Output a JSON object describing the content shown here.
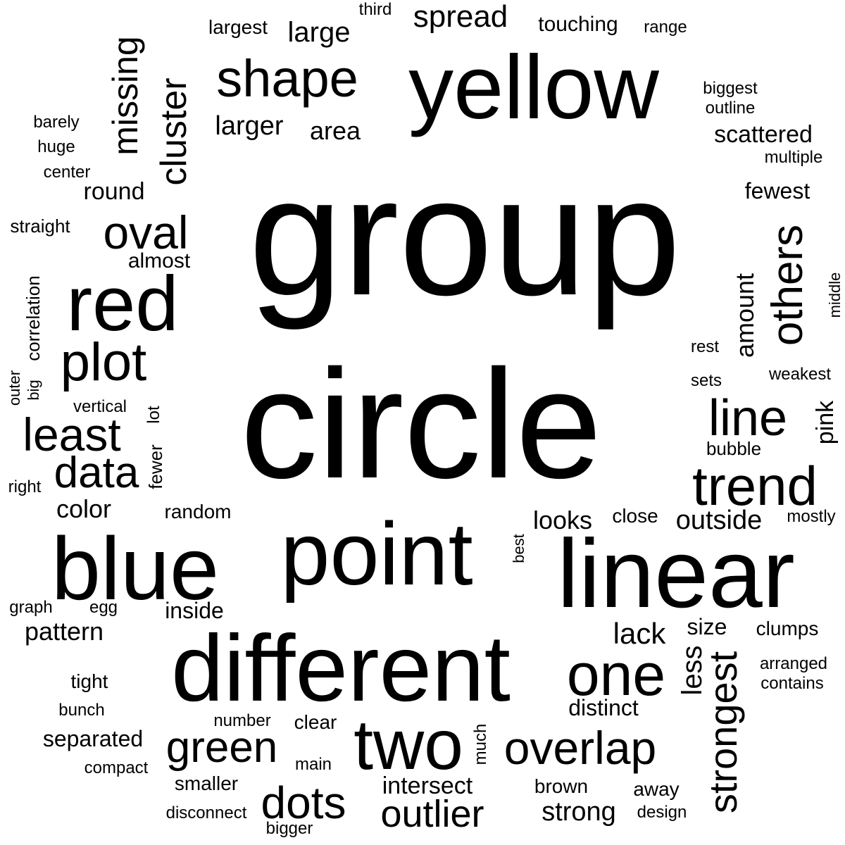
{
  "words": {
    "group": "group",
    "circle": "circle",
    "yellow": "yellow",
    "red": "red",
    "point": "point",
    "blue": "blue",
    "linear": "linear",
    "different": "different",
    "two": "two",
    "shape": "shape",
    "plot": "plot",
    "trend": "trend",
    "one": "one",
    "overlap": "overlap",
    "line": "line",
    "data": "data",
    "least": "least",
    "oval": "oval",
    "green": "green",
    "dots": "dots",
    "others": "others",
    "outlier": "outlier",
    "strongest": "strongest",
    "cluster": "cluster",
    "missing": "missing",
    "spread": "spread",
    "large": "large",
    "larger": "larger",
    "area": "area",
    "scattered": "scattered",
    "amount": "amount",
    "outside": "outside",
    "lack": "lack",
    "less": "less",
    "strong": "strong",
    "looks": "looks",
    "color": "color",
    "pattern": "pattern",
    "intersect": "intersect",
    "fewest": "fewest",
    "round": "round",
    "separated": "separated",
    "distinct": "distinct",
    "touching": "touching",
    "largest": "largest",
    "pink": "pink",
    "size": "size",
    "inside": "inside",
    "random": "random",
    "almost": "almost",
    "tight": "tight",
    "clumps": "clumps",
    "smaller": "smaller",
    "brown": "brown",
    "away": "away",
    "close": "close",
    "bubble": "bubble",
    "straight": "straight",
    "correlation": "correlation",
    "third": "third",
    "range": "range",
    "biggest": "biggest",
    "outline": "outline",
    "multiple": "multiple",
    "barely": "barely",
    "huge": "huge",
    "center": "center",
    "weakest": "weakest",
    "rest": "rest",
    "sets": "sets",
    "middle": "middle",
    "vertical": "vertical",
    "lot": "lot",
    "fewer": "fewer",
    "outer": "outer",
    "big": "big",
    "right": "right",
    "mostly": "mostly",
    "best": "best",
    "graph": "graph",
    "egg": "egg",
    "arranged": "arranged",
    "contains": "contains",
    "bunch": "bunch",
    "number": "number",
    "clear": "clear",
    "much": "much",
    "compact": "compact",
    "main": "main",
    "disconnect": "disconnect",
    "bigger": "bigger",
    "design": "design"
  }
}
